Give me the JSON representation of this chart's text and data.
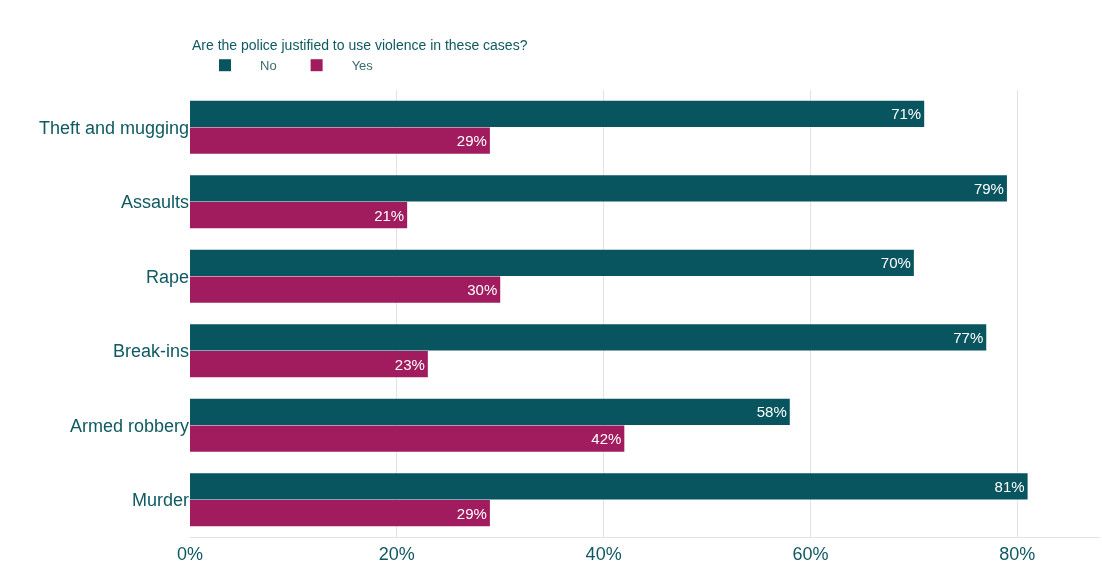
{
  "chart_data": {
    "type": "bar",
    "orientation": "horizontal",
    "legend_title": "Are the police justified to use violence in these cases?",
    "legend": "top left",
    "categories": [
      "Theft and mugging",
      "Assaults",
      "Rape",
      "Break-ins",
      "Armed robbery",
      "Murder"
    ],
    "series": [
      {
        "name": "No",
        "color": "#08545f",
        "values": [
          71,
          79,
          70,
          77,
          58,
          81
        ],
        "value_labels": [
          "71%",
          "79%",
          "70%",
          "77%",
          "58%",
          "81%"
        ]
      },
      {
        "name": "Yes",
        "color": "#a01c5f",
        "values": [
          29,
          21,
          30,
          23,
          42,
          29
        ],
        "value_labels": [
          "29%",
          "21%",
          "30%",
          "23%",
          "42%",
          "29%"
        ]
      }
    ],
    "xlim": [
      0,
      88
    ],
    "xticks": [
      {
        "value": 0,
        "label": "0%"
      },
      {
        "value": 20,
        "label": "20%"
      },
      {
        "value": 40,
        "label": "40%"
      },
      {
        "value": 60,
        "label": "60%"
      },
      {
        "value": 80,
        "label": "80%"
      }
    ],
    "grid": "x"
  }
}
